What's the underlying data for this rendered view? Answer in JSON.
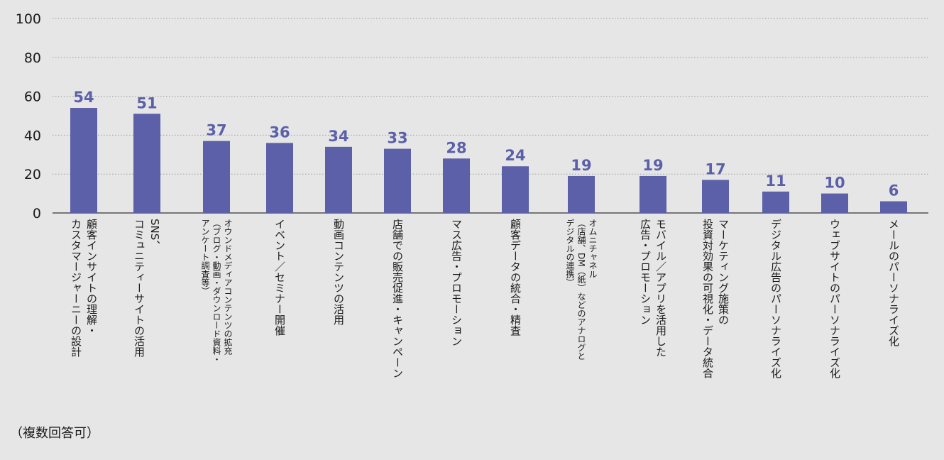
{
  "note": "（複数回答可）",
  "colors": {
    "bar": "#5b60a8",
    "label": "#5b60a8"
  },
  "chart_data": {
    "type": "bar",
    "ylim": [
      0,
      100
    ],
    "yticks": [
      0,
      20,
      40,
      60,
      80,
      100
    ],
    "grid": true,
    "categories": [
      [
        "顧客インサイトの理解・",
        "カスタマージャーニーの設計"
      ],
      [
        "SNS、",
        "コミュニティーサイトの活用"
      ],
      [
        "オウンドメディアコンテンツの拡充",
        "（ブログ・動画・ダウンロード資料・",
        "アンケート調査等）"
      ],
      [
        "イベント／セミナー開催"
      ],
      [
        "動画コンテンツの活用"
      ],
      [
        "店舗での販売促進・キャンペーン"
      ],
      [
        "マス広告・プロモーション"
      ],
      [
        "顧客データの統合・精査"
      ],
      [
        "オムニチャネル",
        "（店舗、DM（紙）などのアナログと",
        "デジタルの連携）"
      ],
      [
        "モバイル／アプリを活用した",
        "広告・プロモーション"
      ],
      [
        "マーケティング施策の",
        "投資対効果の可視化・データ統合"
      ],
      [
        "デジタル広告のパーソナライズ化"
      ],
      [
        "ウェブサイトのパーソナライズ化"
      ],
      [
        "メールのパーソナライズ化"
      ]
    ],
    "values": [
      54,
      51,
      37,
      36,
      34,
      33,
      28,
      24,
      19,
      19,
      17,
      11,
      10,
      6
    ]
  }
}
